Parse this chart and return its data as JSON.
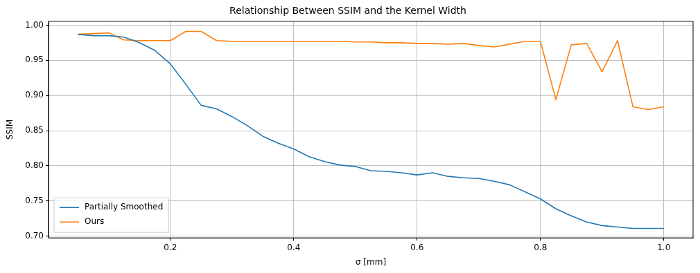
{
  "chart_data": {
    "type": "line",
    "title": "Relationship Between SSIM and the Kernel Width",
    "xlabel": "σ [mm]",
    "ylabel": "SSIM",
    "x": [
      0.05,
      0.075,
      0.1,
      0.125,
      0.15,
      0.175,
      0.2,
      0.225,
      0.25,
      0.275,
      0.3,
      0.325,
      0.35,
      0.375,
      0.4,
      0.425,
      0.45,
      0.475,
      0.5,
      0.525,
      0.55,
      0.575,
      0.6,
      0.625,
      0.65,
      0.675,
      0.7,
      0.725,
      0.75,
      0.775,
      0.8,
      0.825,
      0.85,
      0.875,
      0.9,
      0.925,
      0.95,
      0.975,
      1.0
    ],
    "series": [
      {
        "name": "Partially Smoothed",
        "color": "#1f77b4",
        "values": [
          0.987,
          0.985,
          0.985,
          0.983,
          0.975,
          0.964,
          0.945,
          0.916,
          0.886,
          0.881,
          0.87,
          0.857,
          0.842,
          0.832,
          0.824,
          0.813,
          0.806,
          0.801,
          0.799,
          0.793,
          0.792,
          0.79,
          0.787,
          0.79,
          0.785,
          0.783,
          0.782,
          0.778,
          0.773,
          0.763,
          0.753,
          0.739,
          0.729,
          0.72,
          0.715,
          0.713,
          0.711,
          0.711,
          0.711
        ]
      },
      {
        "name": "Ours",
        "color": "#ff7f0e",
        "values": [
          0.987,
          0.988,
          0.989,
          0.979,
          0.978,
          0.978,
          0.978,
          0.991,
          0.991,
          0.978,
          0.977,
          0.977,
          0.977,
          0.977,
          0.977,
          0.977,
          0.977,
          0.977,
          0.976,
          0.976,
          0.975,
          0.975,
          0.974,
          0.974,
          0.973,
          0.974,
          0.971,
          0.969,
          0.973,
          0.977,
          0.977,
          0.894,
          0.972,
          0.974,
          0.934,
          0.978,
          0.884,
          0.88,
          0.884
        ]
      }
    ],
    "xlim": [
      0.0025,
      1.0475
    ],
    "xticks": [
      0.2,
      0.4,
      0.6,
      0.8,
      {
        "value": 1.0,
        "label": "1.0"
      }
    ],
    "ylim": [
      0.6975,
      1.0055
    ],
    "yticks": [
      {
        "value": 0.7,
        "label": "0.70"
      },
      0.75,
      {
        "value": 0.8,
        "label": "0.80"
      },
      0.85,
      {
        "value": 0.9,
        "label": "0.90"
      },
      0.95,
      {
        "value": 1.0,
        "label": "1.00"
      }
    ],
    "grid": true,
    "legend": "bottom left",
    "marker": "none",
    "line_style": "solid"
  }
}
